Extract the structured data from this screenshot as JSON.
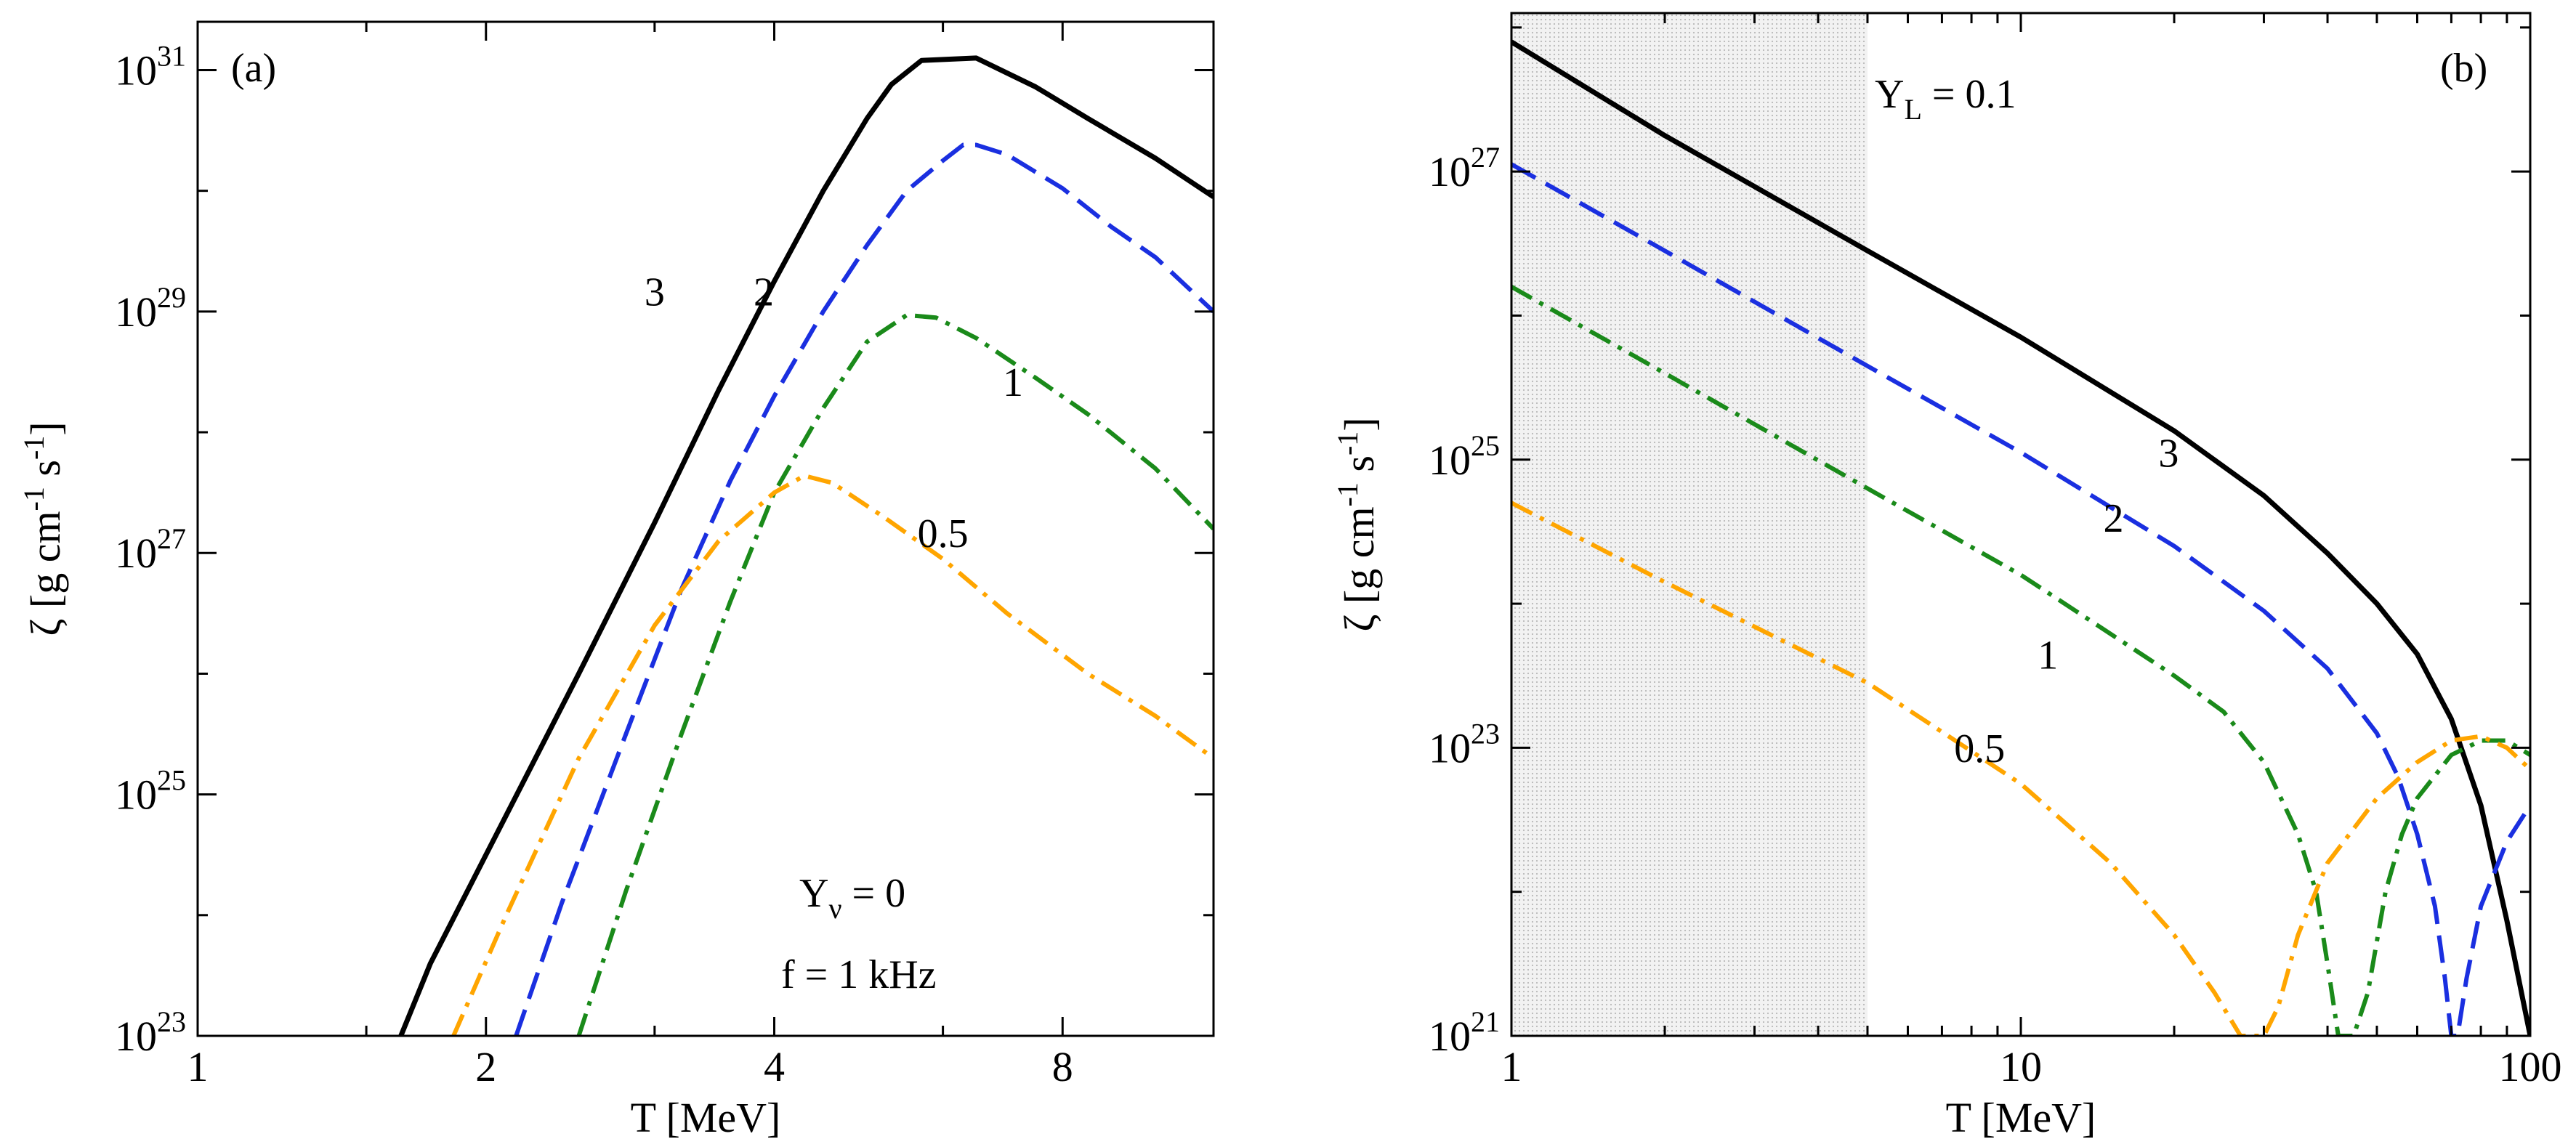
{
  "colors": {
    "series_3": "#000000",
    "series_2": "#1a2fe0",
    "series_1": "#1a8a1a",
    "series_0.5": "#ffa500",
    "shade": "#d9d9d9"
  },
  "chart_data": [
    {
      "type": "line",
      "panel_label": "(a)",
      "xlabel": "T [MeV]",
      "ylabel": "ζ [g cm⁻¹ s⁻¹]",
      "ylabel_base": "ζ [g cm",
      "ylabel_exp1": "-1",
      "ylabel_mid": " s",
      "ylabel_exp2": "-1",
      "ylabel_end": "]",
      "xscale": "log2",
      "yscale": "log10",
      "xlim": [
        1,
        11.5
      ],
      "ylim_exp": [
        23,
        31.4
      ],
      "xticks": [
        1,
        2,
        4,
        8
      ],
      "xtick_labels": [
        "1",
        "2",
        "4",
        "8"
      ],
      "yticks_exp": [
        23,
        25,
        27,
        29,
        31
      ],
      "ytick_base": "10",
      "ytick_exps": [
        "23",
        "25",
        "27",
        "29",
        "31"
      ],
      "annotations": [
        "Yν = 0",
        "f = 1 kHz"
      ],
      "annotation_lines": [
        {
          "main": "Y",
          "sub": "ν",
          "rest": " = 0"
        },
        {
          "main": "f = 1 kHz",
          "sub": "",
          "rest": ""
        }
      ],
      "series": [
        {
          "name": "3",
          "label": "3",
          "color": "#000000",
          "dash": "solid",
          "x": [
            1.63,
            1.75,
            2.0,
            2.5,
            3.0,
            3.5,
            4.0,
            4.5,
            5.0,
            5.3,
            5.7,
            6.5,
            7.5,
            8.5,
            10.0,
            11.5
          ],
          "y_log10": [
            23.0,
            23.6,
            24.5,
            26.0,
            27.25,
            28.35,
            29.25,
            30.0,
            30.6,
            30.88,
            31.08,
            31.1,
            30.86,
            30.6,
            30.27,
            29.95
          ]
        },
        {
          "name": "2",
          "label": "2",
          "color": "#1a2fe0",
          "dash": "dashed",
          "x": [
            2.15,
            2.4,
            2.8,
            3.2,
            3.6,
            4.0,
            4.5,
            5.0,
            5.5,
            6.0,
            6.3,
            6.5,
            7.0,
            8.0,
            9.0,
            10.0,
            11.5
          ],
          "y_log10": [
            23.0,
            24.1,
            25.5,
            26.7,
            27.6,
            28.3,
            29.0,
            29.55,
            30.0,
            30.25,
            30.38,
            30.38,
            30.3,
            30.02,
            29.7,
            29.45,
            29.0
          ]
        },
        {
          "name": "1",
          "label": "1",
          "color": "#1a8a1a",
          "dash": "dashdot",
          "x": [
            2.5,
            2.8,
            3.2,
            3.6,
            4.0,
            4.5,
            5.0,
            5.5,
            5.9,
            6.5,
            7.5,
            8.5,
            10.0,
            11.5
          ],
          "y_log10": [
            23.0,
            24.2,
            25.5,
            26.6,
            27.5,
            28.2,
            28.75,
            28.97,
            28.95,
            28.78,
            28.45,
            28.15,
            27.7,
            27.2
          ]
        },
        {
          "name": "0.5",
          "label": "0.5",
          "color": "#ffa500",
          "dash": "dashdot",
          "x": [
            1.85,
            2.1,
            2.5,
            3.0,
            3.5,
            4.0,
            4.3,
            4.6,
            5.2,
            6.0,
            7.0,
            8.5,
            10.0,
            11.5
          ],
          "y_log10": [
            23.0,
            24.0,
            25.3,
            26.4,
            27.1,
            27.5,
            27.64,
            27.58,
            27.3,
            26.95,
            26.5,
            26.0,
            25.65,
            25.3
          ]
        }
      ]
    },
    {
      "type": "line",
      "panel_label": "(b)",
      "xlabel": "T [MeV]",
      "ylabel": "ζ [g cm⁻¹ s⁻¹]",
      "ylabel_base": "ζ [g cm",
      "ylabel_exp1": "-1",
      "ylabel_mid": " s",
      "ylabel_exp2": "-1",
      "ylabel_end": "]",
      "xscale": "log10",
      "yscale": "log10",
      "xlim": [
        1,
        100
      ],
      "ylim_exp": [
        21,
        28.1
      ],
      "xticks": [
        1,
        10,
        100
      ],
      "xtick_labels": [
        "1",
        "10",
        "100"
      ],
      "yticks_exp": [
        21,
        23,
        25,
        27
      ],
      "ytick_base": "10",
      "ytick_exps": [
        "21",
        "23",
        "25",
        "27"
      ],
      "shaded_region_x": [
        1,
        5
      ],
      "annotations": [
        "YL = 0.1"
      ],
      "annotation_lines": [
        {
          "main": "Y",
          "sub": "L",
          "rest": " = 0.1"
        }
      ],
      "series": [
        {
          "name": "3",
          "label": "3",
          "color": "#000000",
          "dash": "solid",
          "x": [
            1,
            2,
            5,
            10,
            20,
            30,
            40,
            50,
            60,
            70,
            80,
            90,
            100
          ],
          "y_log10": [
            27.9,
            27.25,
            26.45,
            25.85,
            25.2,
            24.75,
            24.35,
            24.0,
            23.65,
            23.2,
            22.6,
            21.8,
            21.0
          ]
        },
        {
          "name": "2",
          "label": "2",
          "color": "#1a2fe0",
          "dash": "dashed",
          "x": [
            1,
            2,
            5,
            10,
            20,
            30,
            40,
            50,
            55,
            60,
            65,
            68,
            70,
            72,
            75,
            80,
            90,
            100
          ],
          "y_log10": [
            27.05,
            26.45,
            25.65,
            25.05,
            24.4,
            23.95,
            23.55,
            23.1,
            22.8,
            22.4,
            21.9,
            21.4,
            21.0,
            21.0,
            21.4,
            21.9,
            22.35,
            22.6
          ]
        },
        {
          "name": "1",
          "label": "1",
          "color": "#1a8a1a",
          "dash": "dashdot",
          "x": [
            1,
            2,
            5,
            10,
            20,
            25,
            30,
            35,
            38,
            40,
            42,
            45,
            48,
            52,
            56,
            60,
            70,
            80,
            90,
            100
          ],
          "y_log10": [
            26.2,
            25.6,
            24.8,
            24.2,
            23.5,
            23.25,
            22.9,
            22.4,
            22.0,
            21.5,
            21.0,
            21.0,
            21.3,
            22.0,
            22.4,
            22.65,
            22.95,
            23.05,
            23.05,
            22.95
          ]
        },
        {
          "name": "0.5",
          "label": "0.5",
          "color": "#ffa500",
          "dash": "dashdot",
          "x": [
            1,
            2,
            5,
            10,
            15,
            20,
            24,
            27,
            29,
            30,
            32,
            35,
            40,
            50,
            60,
            70,
            80,
            90,
            100
          ],
          "y_log10": [
            24.7,
            24.15,
            23.45,
            22.75,
            22.2,
            21.7,
            21.3,
            21.0,
            21.0,
            21.0,
            21.2,
            21.7,
            22.2,
            22.65,
            22.9,
            23.05,
            23.08,
            23.0,
            22.85
          ]
        }
      ]
    }
  ]
}
